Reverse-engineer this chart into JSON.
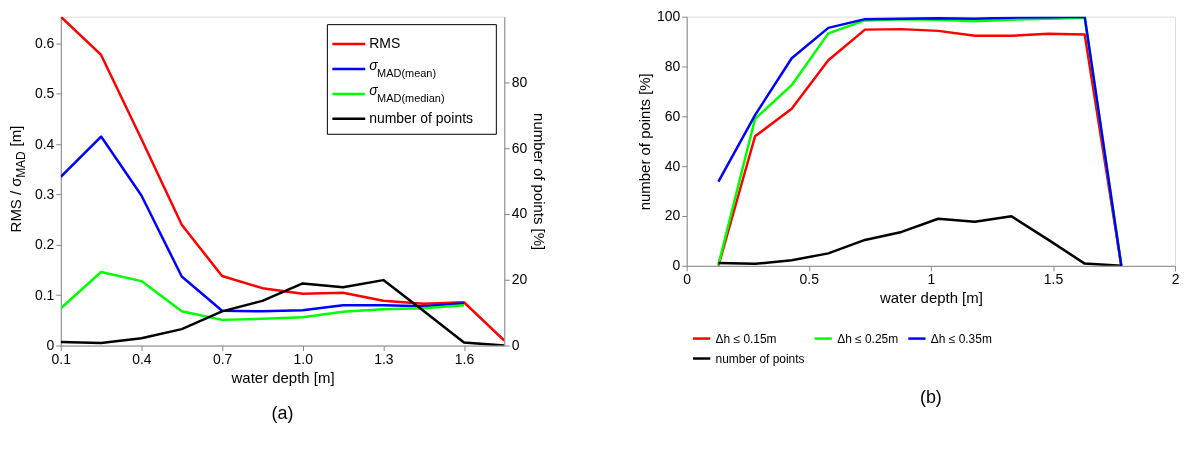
{
  "chart_data": [
    {
      "type": "line",
      "title": "(a)",
      "xlabel": "water depth [m]",
      "ylabel": "RMS / σ$_{MAD}$ [m]",
      "y2label": "number of points [%]",
      "x": [
        0.1,
        0.25,
        0.4,
        0.55,
        0.7,
        0.85,
        1.0,
        1.15,
        1.3,
        1.45,
        1.6,
        1.75
      ],
      "xlim": [
        0.1,
        1.75
      ],
      "xticks": [
        0.1,
        0.4,
        0.7,
        {
          "value": 1.0,
          "label": "1.0"
        },
        1.3,
        1.6
      ],
      "ylim": [
        0,
        0.653
      ],
      "yticks": [
        0,
        0.1,
        0.2,
        0.3,
        0.4,
        0.5,
        0.6
      ],
      "y2lim": [
        0,
        100
      ],
      "y2ticks": [
        0,
        20,
        40,
        60,
        80
      ],
      "grid": false,
      "legend": "top right",
      "line_style": "solid",
      "series": [
        {
          "name": "RMS",
          "color": "#ff0000",
          "values": [
            0.653,
            0.577,
            0.41,
            0.24,
            0.138,
            0.114,
            0.103,
            0.105,
            0.089,
            0.083,
            0.086,
            0.01
          ]
        },
        {
          "name": "σ$_{MAD(mean)}$",
          "color": "#0000ff",
          "values": [
            0.335,
            0.415,
            0.298,
            0.137,
            0.069,
            0.068,
            0.07,
            0.08,
            0.08,
            0.078,
            0.084,
            null
          ]
        },
        {
          "name": "σ$_{MAD(median)}$",
          "color": "#00ff00",
          "values": [
            0.074,
            0.146,
            0.128,
            0.068,
            0.051,
            0.053,
            0.056,
            0.067,
            0.072,
            0.074,
            0.08,
            null
          ]
        },
        {
          "name": "number of points",
          "color": "#000000",
          "axis": "y2",
          "values": [
            1.1,
            0.8,
            2.2,
            5.0,
            10.4,
            13.6,
            18.9,
            17.7,
            19.9,
            10.5,
            0.9,
            0
          ]
        }
      ]
    },
    {
      "type": "line",
      "title": "(b)",
      "xlabel": "water depth [m]",
      "ylabel": "number of points [%]",
      "x": [
        0.13,
        0.28,
        0.43,
        0.58,
        0.73,
        0.88,
        1.03,
        1.18,
        1.33,
        1.48,
        1.63,
        1.78
      ],
      "xlim": [
        0,
        2
      ],
      "xticks": [
        0,
        0.5,
        1,
        1.5,
        2
      ],
      "ylim": [
        0,
        100
      ],
      "yticks": [
        0,
        20,
        40,
        60,
        80,
        100
      ],
      "grid": false,
      "legend": "bottom",
      "line_style": "solid",
      "series": [
        {
          "name": "Δh ≤ 0.15m",
          "color": "#ff0000",
          "values": [
            0,
            52,
            63,
            82.5,
            94.8,
            95,
            94.3,
            92.3,
            92.3,
            93.1,
            92.8,
            0
          ]
        },
        {
          "name": "Δh ≤ 0.25m",
          "color": "#00ff00",
          "values": [
            0.5,
            59,
            72.5,
            93.3,
            98.5,
            99,
            98.8,
            98.2,
            98.8,
            99.2,
            99.6,
            0
          ]
        },
        {
          "name": "Δh ≤ 0.35m",
          "color": "#0000ff",
          "values": [
            33.8,
            60.5,
            83.3,
            95.5,
            99,
            99.2,
            99.4,
            99.2,
            99.6,
            99.8,
            100,
            0
          ]
        },
        {
          "name": "number of points",
          "color": "#000000",
          "values": [
            1.1,
            0.8,
            2.2,
            5.0,
            10.4,
            13.6,
            18.9,
            17.7,
            19.9,
            10.5,
            0.9,
            0
          ]
        }
      ]
    }
  ]
}
